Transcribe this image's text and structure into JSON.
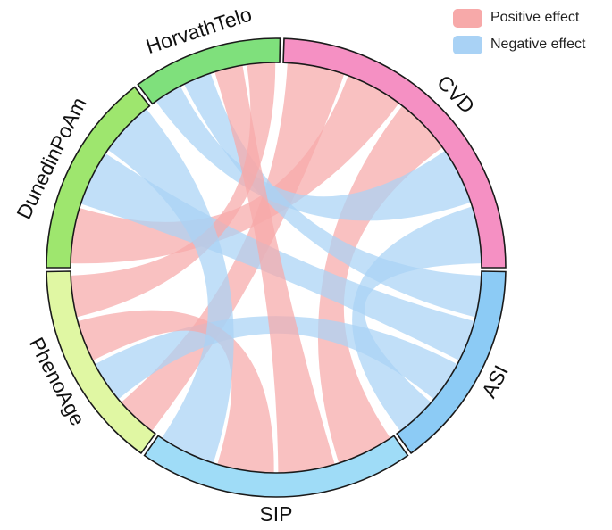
{
  "legend": {
    "positive_label": "Positive effect",
    "negative_label": "Negative effect"
  },
  "colors": {
    "positive": "#f7a9a9",
    "negative": "#a9d2f5"
  },
  "segments": [
    {
      "id": "cvd",
      "label": "CVD",
      "color": "#f590c3"
    },
    {
      "id": "asi",
      "label": "ASI",
      "color": "#8ccbf5"
    },
    {
      "id": "sip",
      "label": "SIP",
      "color": "#9fdcf7"
    },
    {
      "id": "phenoage",
      "label": "PhenoAge",
      "color": "#e0f7a3"
    },
    {
      "id": "dunedinpoam",
      "label": "DunedinPoAm",
      "color": "#9ee66e"
    },
    {
      "id": "horvathtelo",
      "label": "HorvathTelo",
      "color": "#7fe07c"
    }
  ],
  "links": [
    {
      "from": "cvd",
      "to": "phenoage",
      "effect": "positive"
    },
    {
      "from": "cvd",
      "to": "dunedinpoam",
      "effect": "positive"
    },
    {
      "from": "cvd",
      "to": "sip",
      "effect": "positive"
    },
    {
      "from": "cvd",
      "to": "horvathtelo",
      "effect": "negative"
    },
    {
      "from": "asi",
      "to": "horvathtelo",
      "effect": "negative"
    },
    {
      "from": "asi",
      "to": "dunedinpoam",
      "effect": "negative"
    },
    {
      "from": "asi",
      "to": "phenoage",
      "effect": "negative"
    },
    {
      "from": "asi",
      "to": "cvd",
      "effect": "negative"
    },
    {
      "from": "sip",
      "to": "horvathtelo",
      "effect": "positive"
    },
    {
      "from": "sip",
      "to": "phenoage",
      "effect": "positive"
    },
    {
      "from": "horvathtelo",
      "to": "phenoage",
      "effect": "positive"
    },
    {
      "from": "dunedinpoam",
      "to": "sip",
      "effect": "negative"
    }
  ]
}
